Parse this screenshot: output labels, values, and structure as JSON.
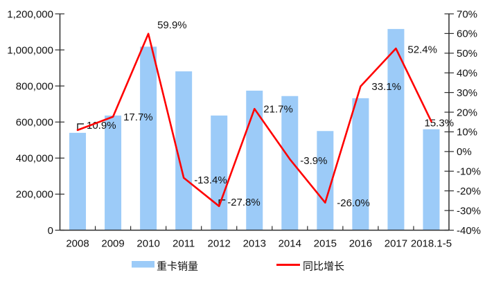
{
  "chart_data": {
    "type": "combo",
    "title": "",
    "categories": [
      "2008",
      "2009",
      "2010",
      "2011",
      "2012",
      "2013",
      "2014",
      "2015",
      "2016",
      "2017",
      "2018.1-5"
    ],
    "series": [
      {
        "name": "重卡销量",
        "type": "bar",
        "axis": "left",
        "color": "#9CCBF8",
        "values": [
          540000,
          636000,
          1018000,
          881000,
          636000,
          774000,
          744000,
          550000,
          732000,
          1116000,
          560000
        ]
      },
      {
        "name": "同比增长",
        "type": "line",
        "axis": "right",
        "color": "#FF0000",
        "values": [
          10.9,
          17.7,
          59.9,
          -13.4,
          -27.8,
          21.7,
          -3.9,
          -26.0,
          33.1,
          52.4,
          15.3
        ],
        "labels": [
          "10.9%",
          "17.7%",
          "59.9%",
          "-13.4%",
          "-27.8%",
          "21.7%",
          "-3.9%",
          "-26.0%",
          "33.1%",
          "52.4%",
          "15.3%"
        ]
      }
    ],
    "left_axis": {
      "min": 0,
      "max": 1200000,
      "step": 200000,
      "tick_labels": [
        "0",
        "200,000",
        "400,000",
        "600,000",
        "800,000",
        "1,000,000",
        "1,200,000"
      ]
    },
    "right_axis": {
      "min": -40,
      "max": 70,
      "step": 10,
      "tick_labels": [
        "-40%",
        "-30%",
        "-20%",
        "-10%",
        "0%",
        "10%",
        "20%",
        "30%",
        "40%",
        "50%",
        "60%",
        "70%"
      ]
    },
    "legend": {
      "position": "bottom",
      "entries": [
        "重卡销量",
        "同比增长"
      ]
    },
    "grid": false,
    "colors": {
      "bar": "#9CCBF8",
      "line": "#FF0000",
      "axis": "#2b2b2b",
      "text": "#111111",
      "background": "#ffffff"
    }
  }
}
